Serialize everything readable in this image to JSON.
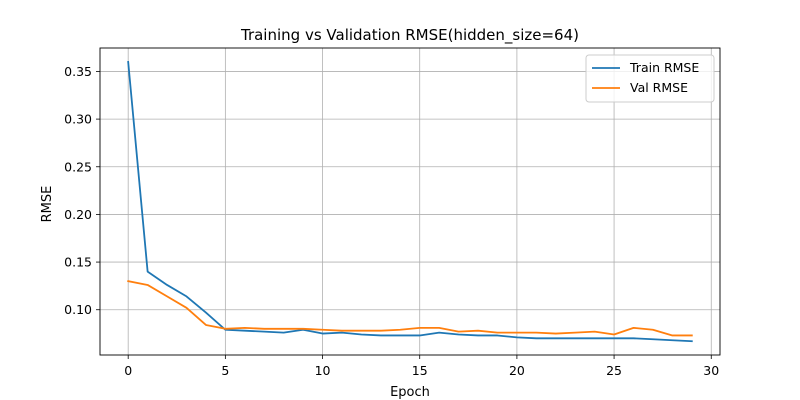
{
  "chart_data": {
    "type": "line",
    "title": "Training vs Validation RMSE(hidden_size=64)",
    "xlabel": "Epoch",
    "ylabel": "RMSE",
    "xlim": [
      -1.45,
      30.45
    ],
    "ylim": [
      0.0525,
      0.3746
    ],
    "xticks": [
      0,
      5,
      10,
      15,
      20,
      25,
      30
    ],
    "yticks": [
      0.1,
      0.15,
      0.2,
      0.25,
      0.3,
      0.35
    ],
    "xtick_labels": [
      "0",
      "5",
      "10",
      "15",
      "20",
      "25",
      "30"
    ],
    "ytick_labels": [
      "0.10",
      "0.15",
      "0.20",
      "0.25",
      "0.30",
      "0.35"
    ],
    "grid": true,
    "legend_position": "top-right",
    "x": [
      0,
      1,
      2,
      3,
      4,
      5,
      6,
      7,
      8,
      9,
      10,
      11,
      12,
      13,
      14,
      15,
      16,
      17,
      18,
      19,
      20,
      21,
      22,
      23,
      24,
      25,
      26,
      27,
      28,
      29
    ],
    "series": [
      {
        "name": "Train RMSE",
        "color": "#1f77b4",
        "values": [
          0.36,
          0.14,
          0.126,
          0.114,
          0.097,
          0.079,
          0.078,
          0.077,
          0.076,
          0.079,
          0.075,
          0.076,
          0.074,
          0.073,
          0.073,
          0.073,
          0.076,
          0.074,
          0.073,
          0.073,
          0.071,
          0.07,
          0.07,
          0.07,
          0.07,
          0.07,
          0.07,
          0.069,
          0.068,
          0.067
        ]
      },
      {
        "name": "Val RMSE",
        "color": "#ff7f0e",
        "values": [
          0.13,
          0.126,
          0.114,
          0.102,
          0.084,
          0.08,
          0.081,
          0.08,
          0.08,
          0.08,
          0.079,
          0.078,
          0.078,
          0.078,
          0.079,
          0.081,
          0.081,
          0.077,
          0.078,
          0.076,
          0.076,
          0.076,
          0.075,
          0.076,
          0.077,
          0.074,
          0.081,
          0.079,
          0.073,
          0.073
        ]
      }
    ]
  }
}
